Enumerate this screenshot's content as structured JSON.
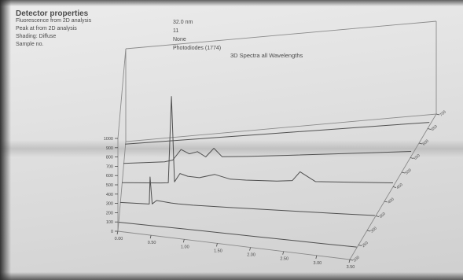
{
  "header": {
    "title": "Detector properties",
    "rows": [
      {
        "label": "Fluorescence from 2D analysis",
        "value": "32.0 nm"
      },
      {
        "label": "Peak at from 2D analysis",
        "value": "11"
      },
      {
        "label": "Shading: Diffuse",
        "value": "None"
      },
      {
        "label": "Sample no.",
        "value": "Photodiodes (1774)"
      }
    ]
  },
  "chart_data": {
    "type": "line",
    "title": "3D Spectra all Wavelengths",
    "style": "3d-waterfall",
    "colors": {
      "line": "#505050",
      "axis": "#4a4a4a",
      "frame": "#8a8a8a"
    },
    "x_ticks": [
      "0.00",
      "0.50",
      "1.00",
      "1.50",
      "2.00",
      "2.50",
      "3.00",
      "3.50"
    ],
    "y_ticks": [
      "0",
      "100",
      "200",
      "300",
      "400",
      "500",
      "600",
      "700",
      "800",
      "900",
      "1000"
    ],
    "z_ticks": [
      "200",
      "250",
      "300",
      "350",
      "400",
      "450",
      "500",
      "550",
      "600",
      "650",
      "700"
    ],
    "ylim": [
      0,
      1000
    ],
    "series": [
      {
        "x": [
          0.0,
          0.5,
          1.0,
          1.5,
          2.0,
          2.5,
          3.0,
          3.5
        ],
        "y": [
          20,
          19,
          18,
          16,
          14,
          12,
          10,
          9
        ]
      },
      {
        "x": [
          0.0,
          0.4,
          0.41,
          0.44,
          0.5,
          0.6,
          0.7,
          0.8,
          1.0,
          1.5,
          2.0,
          2.5,
          3.0,
          3.5
        ],
        "y": [
          30,
          28,
          320,
          30,
          70,
          60,
          50,
          45,
          38,
          32,
          28,
          25,
          22,
          20
        ]
      },
      {
        "x": [
          0.0,
          0.5,
          0.6,
          0.64,
          0.68,
          0.75,
          0.85,
          1.0,
          1.2,
          1.4,
          1.6,
          2.0,
          2.2,
          2.3,
          2.5,
          3.0,
          3.5
        ],
        "y": [
          40,
          38,
          40,
          970,
          50,
          140,
          110,
          95,
          130,
          80,
          70,
          60,
          65,
          160,
          55,
          48,
          42
        ]
      },
      {
        "x": [
          0.0,
          0.5,
          0.6,
          0.7,
          0.8,
          0.9,
          1.0,
          1.1,
          1.2,
          1.5,
          2.0,
          2.5,
          3.0,
          3.5
        ],
        "y": [
          45,
          44,
          60,
          170,
          120,
          140,
          80,
          170,
          75,
          68,
          62,
          58,
          55,
          52
        ]
      },
      {
        "x": [
          0.0,
          0.5,
          1.0,
          1.5,
          2.0,
          2.5,
          3.0,
          3.5
        ],
        "y": [
          50,
          48,
          46,
          44,
          42,
          40,
          38,
          36
        ]
      }
    ]
  }
}
